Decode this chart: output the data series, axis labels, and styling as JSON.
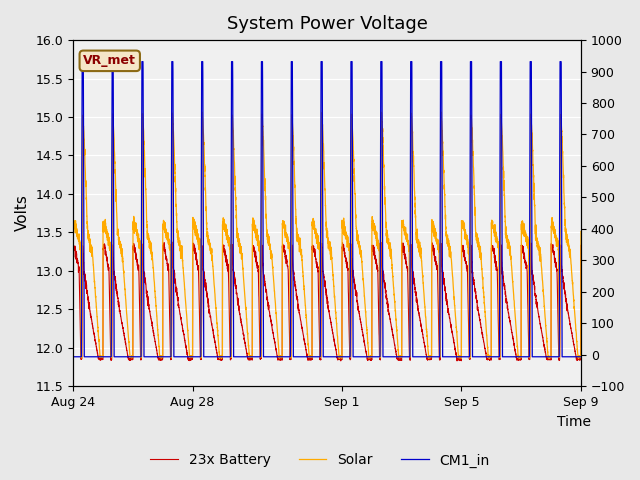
{
  "title": "System Power Voltage",
  "xlabel": "Time",
  "ylabel_left": "Volts",
  "ylim_left": [
    11.5,
    16.0
  ],
  "ylim_right": [
    -100,
    1000
  ],
  "yticks_left": [
    11.5,
    12.0,
    12.5,
    13.0,
    13.5,
    14.0,
    14.5,
    15.0,
    15.5,
    16.0
  ],
  "yticks_right": [
    -100,
    0,
    100,
    200,
    300,
    400,
    500,
    600,
    700,
    800,
    900,
    1000
  ],
  "x_tick_labels": [
    "Aug 24",
    "Aug 28",
    "Sep 1",
    "Sep 5",
    "Sep 9"
  ],
  "x_tick_positions": [
    0,
    4,
    9,
    13,
    17
  ],
  "total_days": 17,
  "annotation_text": "VR_met",
  "bg_color": "#e8e8e8",
  "plot_bg_color": "#f0f0f0",
  "legend_entries": [
    "23x Battery",
    "Solar",
    "CM1_in"
  ],
  "line_colors": [
    "#cc0000",
    "#ffaa00",
    "#0000cc"
  ],
  "grid_color": "#ffffff",
  "figsize": [
    6.4,
    4.8
  ],
  "dpi": 100
}
